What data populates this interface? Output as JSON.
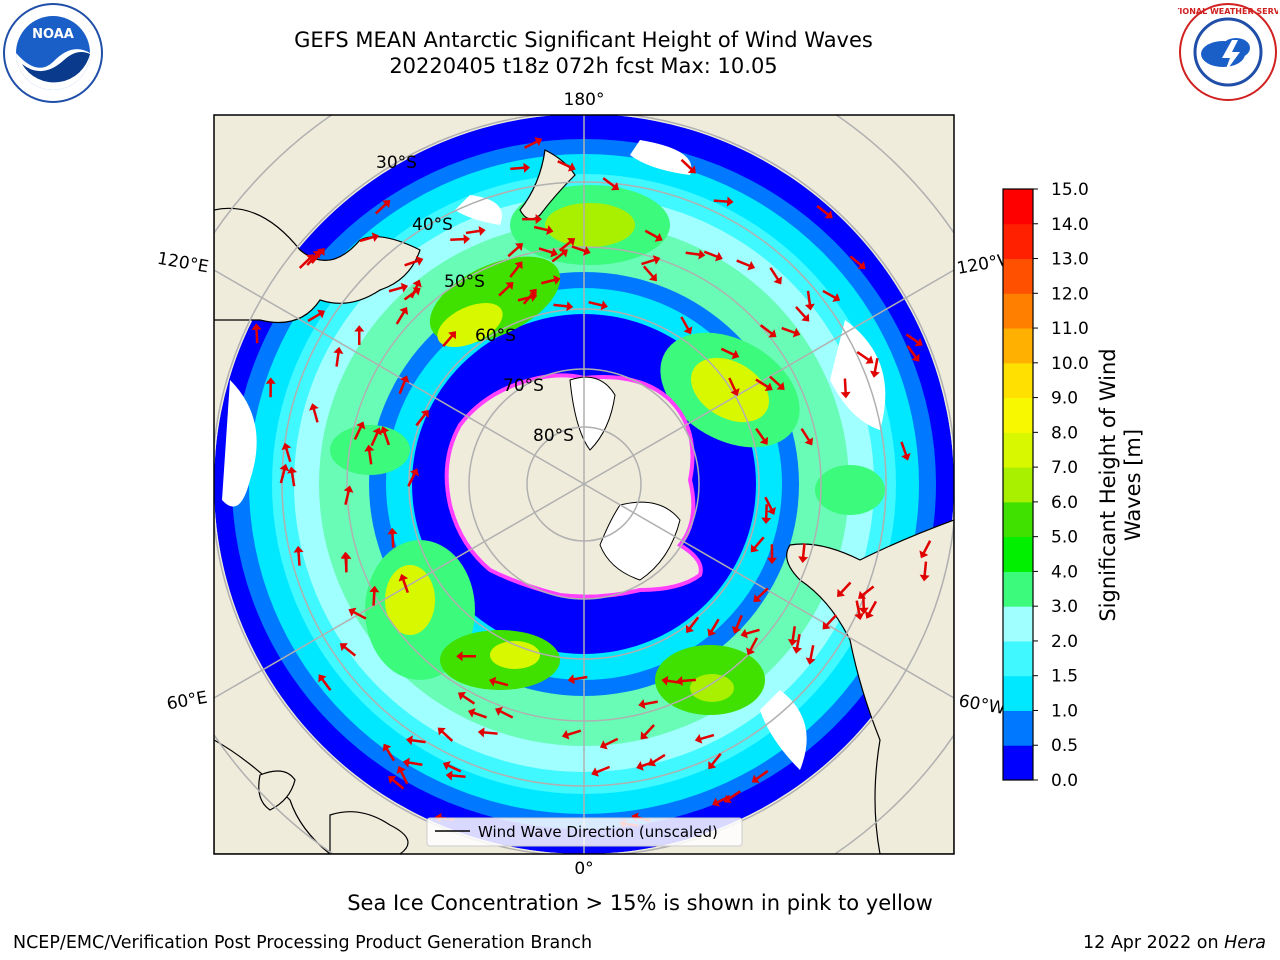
{
  "title": {
    "line1": "GEFS MEAN Antarctic Significant Height of Wind Waves",
    "line2": "20220405 t18z 072h fcst   Max: 10.05"
  },
  "logos": {
    "left": {
      "name": "NOAA",
      "text": "NOAA"
    },
    "right": {
      "name": "National Weather Service",
      "text": "NATIONAL WEATHER SERVICE"
    }
  },
  "map": {
    "lon_labels": {
      "top": "180°",
      "bottom": "0°",
      "upper_left": "120°E",
      "upper_right": "120°W",
      "lower_left": "60°E",
      "lower_right": "60°W"
    },
    "lat_labels": [
      "30°S",
      "40°S",
      "50°S",
      "60°S",
      "70°S",
      "80°S"
    ],
    "legend": "Wind Wave Direction (unscaled)"
  },
  "colorbar": {
    "label": "Significant Height of Wind Waves [m]",
    "label_line1": "Significant Height of Wind",
    "label_line2": "Waves [m]",
    "ticks": [
      "0.0",
      "0.5",
      "1.0",
      "1.5",
      "2.0",
      "3.0",
      "4.0",
      "5.0",
      "6.0",
      "7.0",
      "8.0",
      "9.0",
      "10.0",
      "11.0",
      "12.0",
      "13.0",
      "14.0",
      "15.0"
    ],
    "colors": [
      "#0000ff",
      "#0078ff",
      "#00e8ff",
      "#40f8ff",
      "#a0ffff",
      "#3cfa7c",
      "#00f000",
      "#40e000",
      "#a8f000",
      "#d8f800",
      "#f8f800",
      "#ffe000",
      "#ffb000",
      "#ff8000",
      "#ff5000",
      "#ff2000",
      "#ff0000"
    ]
  },
  "sea_ice_note": "Sea Ice Concentration > 15% is shown in pink to yellow",
  "footer": {
    "left": "NCEP/EMC/Verification Post Processing Product Generation Branch",
    "right_date": "12 Apr 2022 on ",
    "right_machine": "Hera"
  }
}
